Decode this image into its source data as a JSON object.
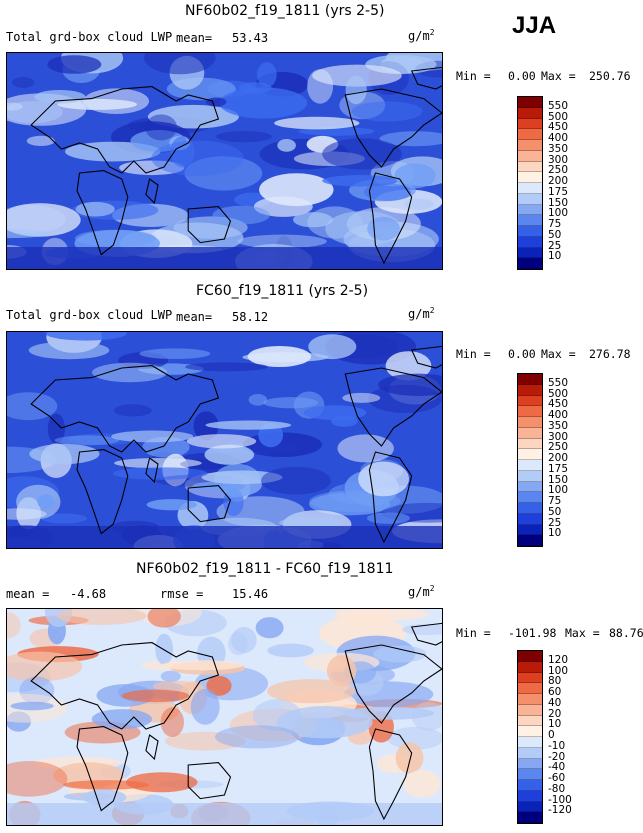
{
  "season": "JJA",
  "panels": [
    {
      "title": "NF60b02_f19_1811 (yrs 2-5)",
      "variable": "Total grd-box cloud LWP",
      "mean_label": "mean=",
      "mean": "53.43",
      "units": "g/m",
      "units_sup": "2",
      "min_label": "Min =",
      "min": "0.00",
      "max_label": "Max =",
      "max": "250.76",
      "base_color": "#2c4fd8",
      "blobs": [
        "#1b2fb8",
        "#3d6df0",
        "#6f9df5",
        "#a9c7f6",
        "#dfeafc"
      ],
      "levels": [
        "10",
        "25",
        "50",
        "75",
        "100",
        "150",
        "175",
        "200",
        "250",
        "300",
        "350",
        "400",
        "450",
        "500",
        "550"
      ],
      "colors": [
        "#00007f",
        "#0a22b8",
        "#1f3fdb",
        "#3560e8",
        "#5b85ef",
        "#86a8f3",
        "#b3cbf7",
        "#dce8fb",
        "#fff2e5",
        "#fcd6c0",
        "#f9b497",
        "#f5906d",
        "#ee6a44",
        "#dc4020",
        "#b81c08",
        "#7f0000"
      ]
    },
    {
      "title": "FC60_f19_1811 (yrs 2-5)",
      "variable": "Total grd-box cloud LWP",
      "mean_label": "mean=",
      "mean": "58.12",
      "units": "g/m",
      "units_sup": "2",
      "min_label": "Min =",
      "min": "0.00",
      "max_label": "Max =",
      "max": "276.78",
      "base_color": "#2c4fd8",
      "blobs": [
        "#1b2fb8",
        "#3d6df0",
        "#6f9df5",
        "#a9c7f6",
        "#dfeafc"
      ],
      "levels": [
        "10",
        "25",
        "50",
        "75",
        "100",
        "150",
        "175",
        "200",
        "250",
        "300",
        "350",
        "400",
        "450",
        "500",
        "550"
      ],
      "colors": [
        "#00007f",
        "#0a22b8",
        "#1f3fdb",
        "#3560e8",
        "#5b85ef",
        "#86a8f3",
        "#b3cbf7",
        "#dce8fb",
        "#fff2e5",
        "#fcd6c0",
        "#f9b497",
        "#f5906d",
        "#ee6a44",
        "#dc4020",
        "#b81c08",
        "#7f0000"
      ]
    },
    {
      "title": "NF60b02_f19_1811 - FC60_f19_1811",
      "mean_label": "mean =",
      "mean": "-4.68",
      "rmse_label": "rmse =",
      "rmse": "15.46",
      "units": "g/m",
      "units_sup": "2",
      "min_label": "Min =",
      "min": "-101.98",
      "max_label": "Max =",
      "max": "88.76",
      "base_color": "#dce8fb",
      "blobs": [
        "#b3cbf7",
        "#86a8f3",
        "#fde6d6",
        "#f7c3a8",
        "#ee6a44"
      ],
      "levels": [
        "-120",
        "-100",
        "-80",
        "-60",
        "-40",
        "-20",
        "-10",
        "0",
        "10",
        "20",
        "40",
        "60",
        "80",
        "100",
        "120"
      ],
      "colors": [
        "#00007f",
        "#0a22b8",
        "#1f3fdb",
        "#3560e8",
        "#5b85ef",
        "#86a8f3",
        "#b3cbf7",
        "#dce8fb",
        "#fff2e5",
        "#fcd6c0",
        "#f9b497",
        "#f5906d",
        "#ee6a44",
        "#dc4020",
        "#b81c08",
        "#7f0000"
      ]
    }
  ],
  "chart_data": [
    {
      "type": "heatmap",
      "title": "NF60b02_f19_1811 (yrs 2-5)",
      "variable": "Total grd-box cloud LWP",
      "units": "g/m^2",
      "mean": 53.43,
      "min": 0.0,
      "max": 250.76,
      "contour_levels": [
        10,
        25,
        50,
        75,
        100,
        150,
        175,
        200,
        250,
        300,
        350,
        400,
        450,
        500,
        550
      ]
    },
    {
      "type": "heatmap",
      "title": "FC60_f19_1811 (yrs 2-5)",
      "variable": "Total grd-box cloud LWP",
      "units": "g/m^2",
      "mean": 58.12,
      "min": 0.0,
      "max": 276.78,
      "contour_levels": [
        10,
        25,
        50,
        75,
        100,
        150,
        175,
        200,
        250,
        300,
        350,
        400,
        450,
        500,
        550
      ]
    },
    {
      "type": "heatmap",
      "title": "NF60b02_f19_1811 - FC60_f19_1811",
      "units": "g/m^2",
      "mean": -4.68,
      "rmse": 15.46,
      "min": -101.98,
      "max": 88.76,
      "contour_levels": [
        -120,
        -100,
        -80,
        -60,
        -40,
        -20,
        -10,
        0,
        10,
        20,
        40,
        60,
        80,
        100,
        120
      ]
    }
  ]
}
